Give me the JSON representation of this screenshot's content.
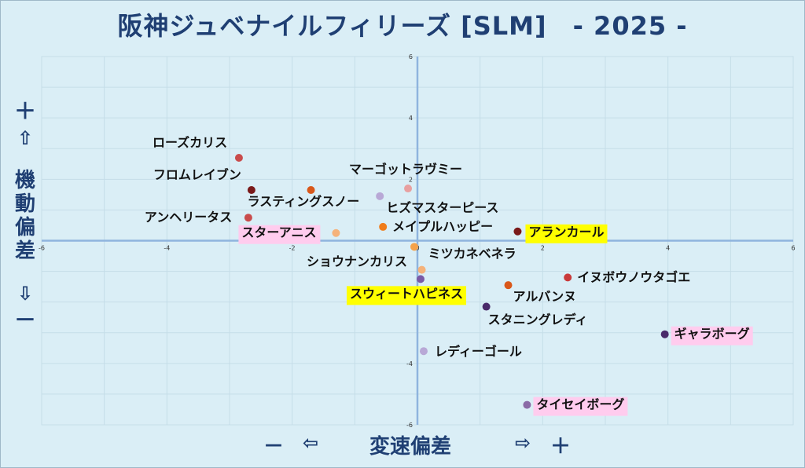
{
  "title": "阪神ジュベナイルフィリーズ [SLM]　- 2025 -",
  "y_axis": {
    "top_symbol": "＋",
    "up_arrow": "⇧",
    "label": "機動偏差",
    "down_arrow": "⇩",
    "bottom_symbol": "－"
  },
  "x_axis": {
    "left_symbol": "－",
    "left_arrow": "⇦",
    "label": "変速偏差",
    "right_arrow": "⇨",
    "right_symbol": "＋"
  },
  "colors": {
    "axis": "#8fb4de",
    "grid": "#c5dde8",
    "plot_bg": "#daeef6",
    "title": "#1f3f73",
    "highlight_yellow": "#ffff00",
    "highlight_pink": "#ffccee"
  },
  "chart_data": {
    "type": "scatter",
    "xlim": [
      -6,
      6
    ],
    "ylim": [
      -6,
      6
    ],
    "x_ticks": [
      "-6",
      "-4",
      "-2",
      "0",
      "2",
      "4",
      "6"
    ],
    "y_ticks": [
      "6",
      "4",
      "2",
      "0",
      "-2",
      "-4",
      "-6"
    ],
    "grid": true,
    "points": [
      {
        "name": "ローズカリス",
        "x": -2.85,
        "y": 2.7,
        "color": "#c94c4c",
        "highlight": null
      },
      {
        "name": "フロムレイブン",
        "x": -2.65,
        "y": 1.65,
        "color": "#7a1a1a",
        "highlight": null
      },
      {
        "name": "ラスティングスノー",
        "x": -1.7,
        "y": 1.65,
        "color": "#d9581a",
        "highlight": null
      },
      {
        "name": "マーゴットラヴミー",
        "x": -0.15,
        "y": 1.7,
        "color": "#e8a0a0",
        "highlight": null
      },
      {
        "name": "ヒズマスターピース",
        "x": -0.6,
        "y": 1.45,
        "color": "#b8a8d6",
        "highlight": null
      },
      {
        "name": "アンヘリータス",
        "x": -2.7,
        "y": 0.75,
        "color": "#c94c4c",
        "highlight": null
      },
      {
        "name": "メイプルハッピー",
        "x": -0.55,
        "y": 0.45,
        "color": "#f07c1a",
        "highlight": null
      },
      {
        "name": "スターアニス",
        "x": -1.3,
        "y": 0.25,
        "color": "#f5b27a",
        "highlight": "pink"
      },
      {
        "name": "アランカール",
        "x": 1.6,
        "y": 0.3,
        "color": "#7a1a1a",
        "highlight": "yellow"
      },
      {
        "name": "ショウナンカリス",
        "x": -0.05,
        "y": -0.2,
        "color": "#f5a24a",
        "highlight": null
      },
      {
        "name": "ミツカネベネラ",
        "x": 0.07,
        "y": -0.95,
        "color": "#f5b27a",
        "highlight": null
      },
      {
        "name": "スウィートハピネス",
        "x": 0.05,
        "y": -1.25,
        "color": "#7a5aa6",
        "highlight": "yellow"
      },
      {
        "name": "イヌボウノウタゴエ",
        "x": 2.4,
        "y": -1.2,
        "color": "#c93a3a",
        "highlight": null
      },
      {
        "name": "アルバンヌ",
        "x": 1.45,
        "y": -1.45,
        "color": "#d9581a",
        "highlight": null
      },
      {
        "name": "スタニングレディ",
        "x": 1.1,
        "y": -2.15,
        "color": "#4a2a6a",
        "highlight": null
      },
      {
        "name": "ギャラボーグ",
        "x": 3.95,
        "y": -3.05,
        "color": "#4a2a6a",
        "highlight": "pink"
      },
      {
        "name": "レディーゴール",
        "x": 0.1,
        "y": -3.6,
        "color": "#b8a8d6",
        "highlight": null
      },
      {
        "name": "タイセイボーグ",
        "x": 1.75,
        "y": -5.35,
        "color": "#8a6aa6",
        "highlight": "pink"
      }
    ]
  }
}
